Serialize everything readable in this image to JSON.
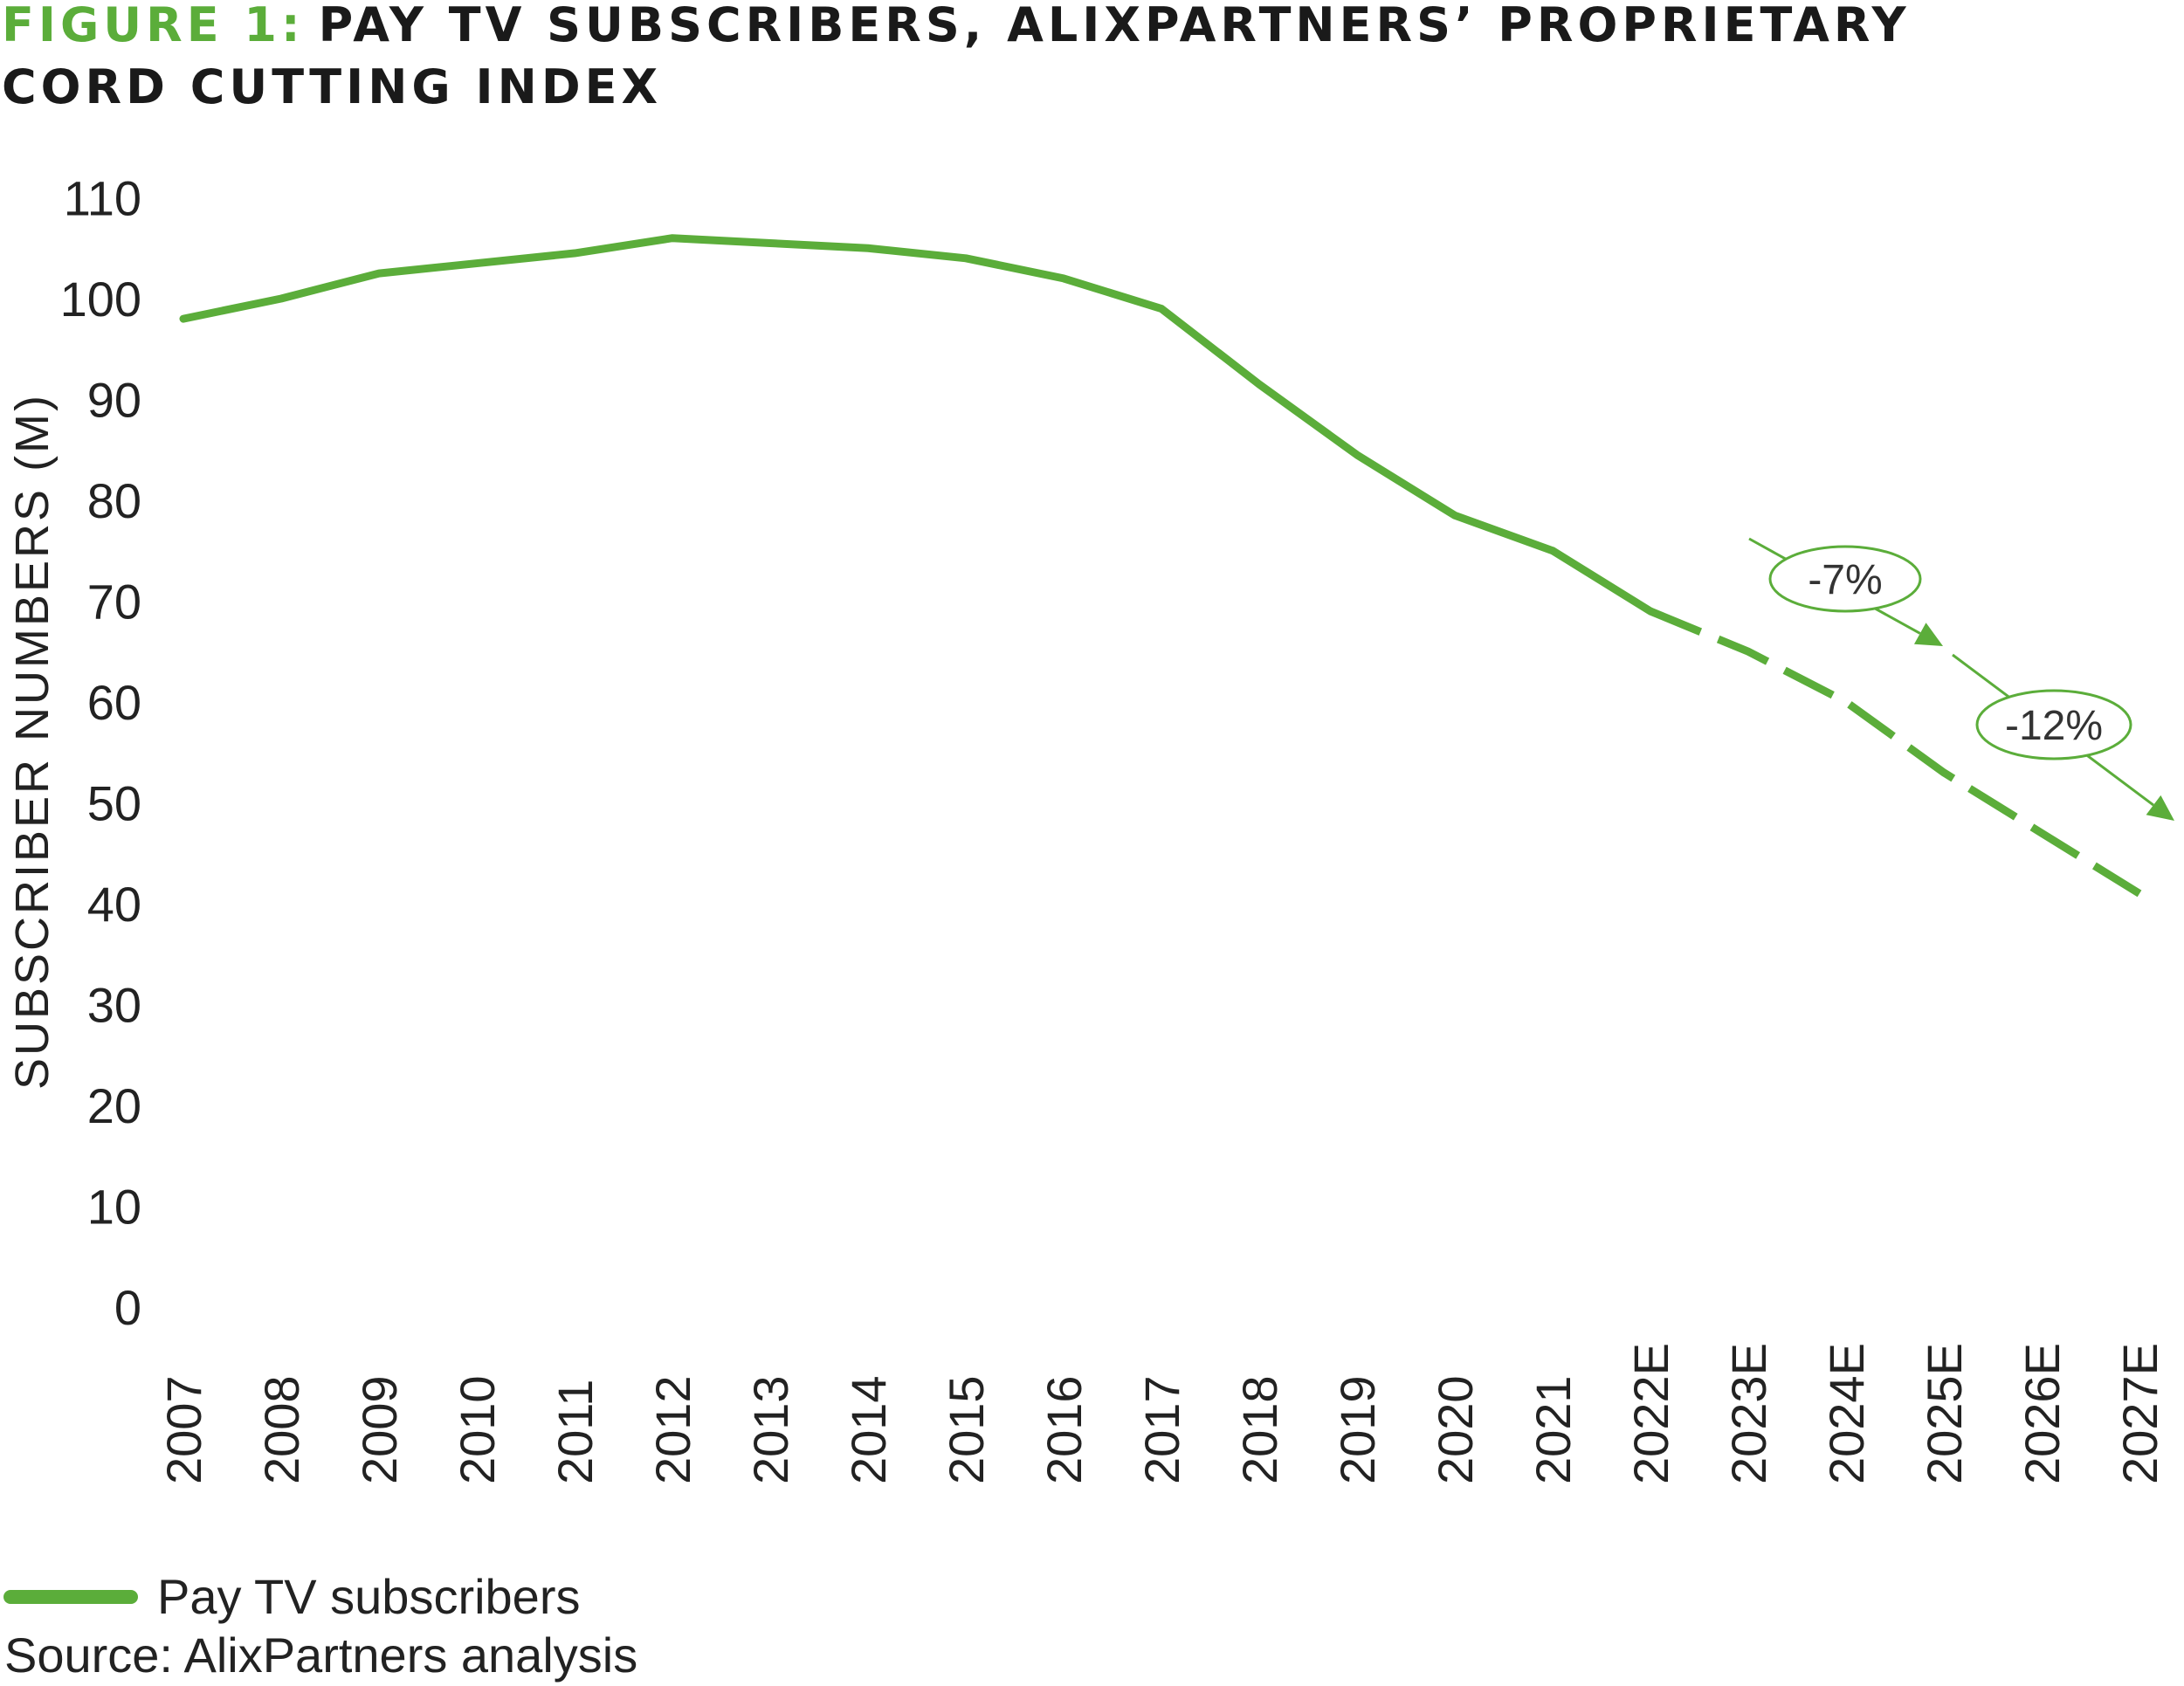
{
  "header": {
    "figure_label": "FIGURE 1:",
    "title_line1": "PAY TV SUBSCRIBERS, ALIXPARTNERS’ PROPRIETARY",
    "title_line2": "CORD CUTTING INDEX"
  },
  "colors": {
    "accent": "#5BAD3A",
    "text": "#222222"
  },
  "chart_data": {
    "type": "line",
    "title": "PAY TV SUBSCRIBERS, ALIXPARTNERS’ PROPRIETARY CORD CUTTING INDEX",
    "xlabel": "",
    "ylabel": "SUBSCRIBER NUMBERS (M)",
    "ylim": [
      0,
      110
    ],
    "yticks": [
      0,
      10,
      20,
      30,
      40,
      50,
      60,
      70,
      80,
      90,
      100,
      110
    ],
    "grid": false,
    "legend_position": "bottom-left",
    "categories": [
      "2007",
      "2008",
      "2009",
      "2010",
      "2011",
      "2012",
      "2013",
      "2014",
      "2015",
      "2016",
      "2017",
      "2018",
      "2019",
      "2020",
      "2021",
      "2022E",
      "2023E",
      "2024E",
      "2025E",
      "2026E",
      "2027E"
    ],
    "series": [
      {
        "name": "Pay TV subscribers",
        "values": [
          98,
          100,
          102.5,
          103.5,
          104.5,
          106,
          105.5,
          105,
          104,
          102,
          99,
          91.5,
          84.5,
          78.5,
          75,
          69,
          65,
          60,
          53,
          47,
          41
        ],
        "actual_through": "2021",
        "forecast_from": "2022E"
      }
    ],
    "annotations": [
      {
        "label": "-7%",
        "arrow_from": "2021",
        "arrow_to": "2025E"
      },
      {
        "label": "-12%",
        "arrow_from": "2024E",
        "arrow_to": "2027E"
      }
    ]
  },
  "legend": {
    "label": "Pay TV subscribers"
  },
  "source": "Source: AlixPartners analysis"
}
